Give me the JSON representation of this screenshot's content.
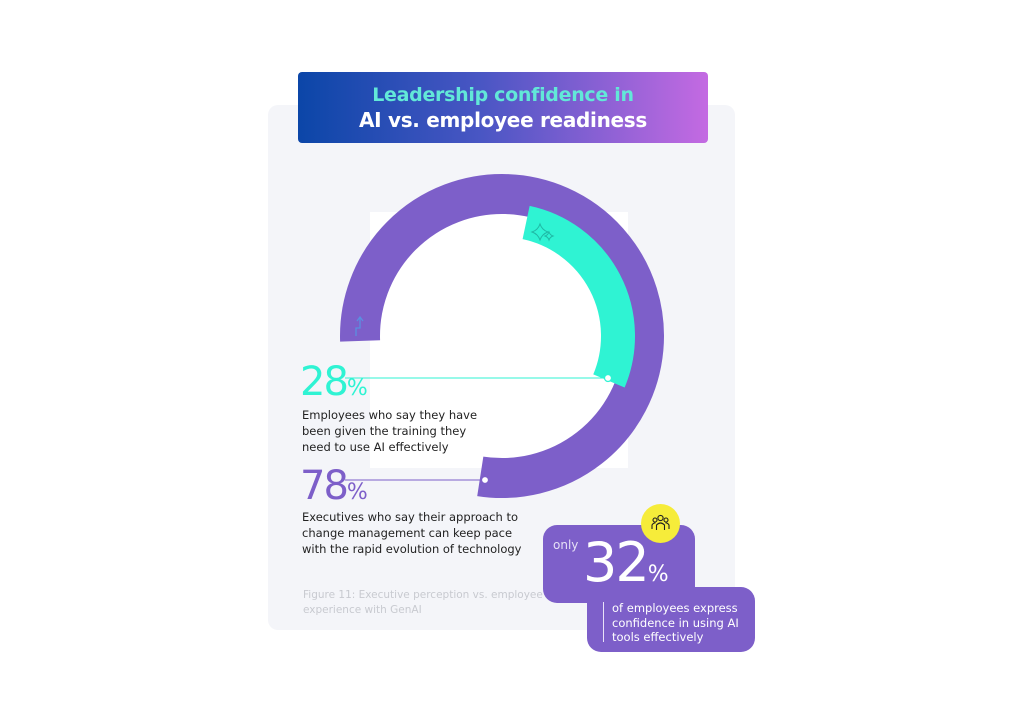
{
  "title": {
    "line1": "Leadership confidence in",
    "line2": "AI vs. employee readiness"
  },
  "colors": {
    "teal": "#2ff3d3",
    "purple": "#7d5fc9",
    "yellow": "#f6ec3a",
    "banner_start": "#0b46a8",
    "banner_end": "#c46ae2"
  },
  "chart_data": {
    "type": "radial-bar",
    "series": [
      {
        "value": 78,
        "unit": "%",
        "color": "#7d5fc9",
        "icon": "trend-up-arrow-icon"
      },
      {
        "value": 28,
        "unit": "%",
        "color": "#2ff3d3",
        "icon": "sparkle-icon"
      }
    ]
  },
  "callouts": [
    {
      "value": "28",
      "unit": "%",
      "text": [
        "Employees who say they have",
        "been given the training they",
        "need to use AI effectively"
      ]
    },
    {
      "value": "78",
      "unit": "%",
      "text": [
        "Executives who say their approach to",
        "change management can keep pace",
        "with the rapid evolution of technology"
      ]
    }
  ],
  "highlight": {
    "prefix": "only",
    "value": "32",
    "unit": "%",
    "text": [
      "of employees express",
      "confidence in using AI",
      "tools effectively"
    ],
    "icon": "people-group-icon"
  },
  "caption": [
    "Figure 11: Executive perception vs. employee",
    "experience with GenAI"
  ]
}
